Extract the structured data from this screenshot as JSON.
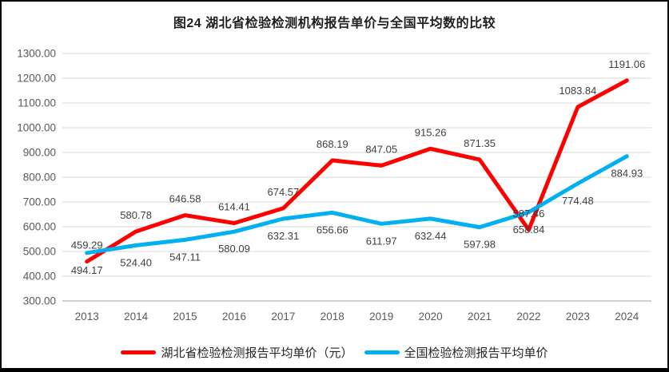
{
  "page": {
    "title": "图24 湖北省检验检测机构报告单价与全国平均数的比较"
  },
  "chart_data": {
    "type": "line",
    "title": "图24 湖北省检验检测机构报告单价与全国平均数的比较",
    "x": [
      "2013",
      "2014",
      "2015",
      "2016",
      "2017",
      "2018",
      "2019",
      "2020",
      "2021",
      "2022",
      "2023",
      "2024"
    ],
    "series": [
      {
        "name": "湖北省检验检测报告平均单价（元）",
        "color": "#ff0000",
        "label_position": "above",
        "values": [
          459.29,
          580.78,
          646.58,
          614.41,
          674.57,
          868.19,
          847.05,
          915.26,
          871.35,
          587.46,
          1083.84,
          1191.06
        ]
      },
      {
        "name": "全国检验检测报告平均单价",
        "color": "#00b0f0",
        "label_position": "below",
        "values": [
          494.17,
          524.4,
          547.11,
          580.09,
          632.31,
          656.66,
          611.97,
          632.44,
          597.98,
          658.84,
          774.48,
          884.93
        ]
      }
    ],
    "ylim": [
      300,
      1300
    ],
    "ytick_step": 100,
    "ytick_decimals": 2,
    "grid": true,
    "legend_position": "bottom",
    "style": {
      "gridline_color": "#d9d9d9",
      "axis_line_color": "#bfbfbf",
      "tick_label_color": "#595959",
      "data_label_color": "#404040",
      "line_width": 5
    }
  }
}
